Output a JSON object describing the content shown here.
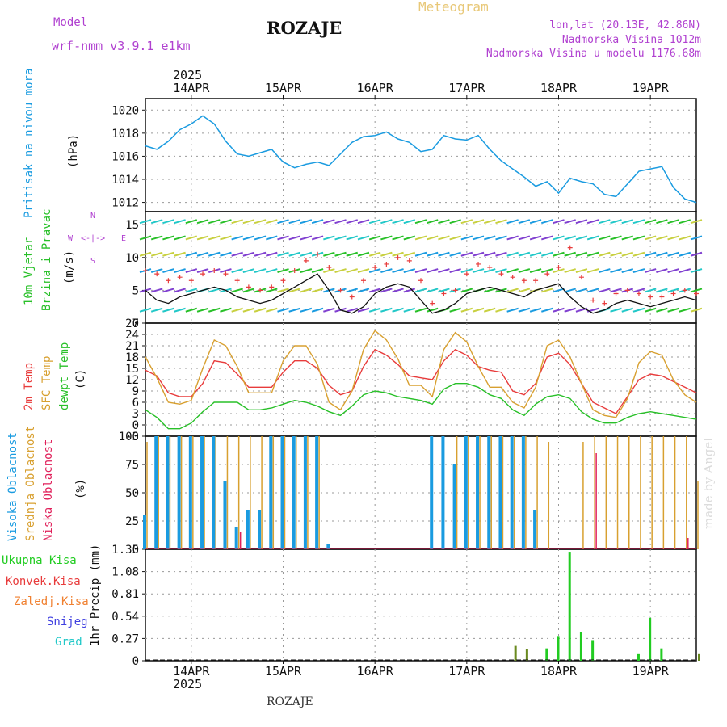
{
  "header": {
    "model_label": "Model",
    "model_name": "wrf-nmm_v3.9.1 e1km",
    "station": "ROZAJE",
    "meteogram_label": "Meteogram",
    "lonlat": "lon,lat (20.13E, 42.86N)",
    "elevation": "Nadmorska Visina 1012m",
    "model_elevation": "Nadmorska Visina u modelu 1176.68m",
    "year_top": "2025",
    "year_bottom": "2025",
    "bottom_station": "ROZAJE",
    "credit": "made by Angel"
  },
  "colors": {
    "pressure": "#1a9be0",
    "temp2m": "#e83c3c",
    "sfc": "#d8a030",
    "dewpt": "#28c028",
    "high_cloud": "#1a9be0",
    "mid_cloud": "#d8a030",
    "low_cloud": "#e0205a",
    "precip_total": "#22cc22",
    "precip_conv": "#e83c3c",
    "precip_frozen": "#f08030",
    "snow": "#4040e0",
    "grad": "#20c8c8",
    "model_label": "#b040d0"
  },
  "dates": [
    "14APR",
    "15APR",
    "16APR",
    "17APR",
    "18APR",
    "19APR"
  ],
  "panel_labels": {
    "pressure": [
      "Pritisak na nivou mora"
    ],
    "pressure_unit": "(hPa)",
    "wind": [
      "10m Vjetar",
      "Brzina i Pravac"
    ],
    "wind_unit": "(m/s)",
    "compass": [
      "N",
      "E",
      "W",
      "S",
      "<-|->",
      "^",
      "v"
    ],
    "temp": [
      "2m Temp",
      "SFC Temp",
      "dewpt Temp"
    ],
    "temp_unit": "(C)",
    "cloud": [
      "Visoka Oblacnost",
      "Srednja Oblacnost",
      "Niska Oblacnost"
    ],
    "cloud_unit": "(%)",
    "precip_legend": [
      "Ukupna Kisa",
      "Konvek.Kisa",
      "Zaledj.Kisa",
      "Snijeg",
      "Grad"
    ],
    "precip_unit": "1hr Precip (mm)"
  },
  "chart_data": [
    {
      "type": "line",
      "name": "pressure",
      "ylabel": "(hPa)",
      "ylim": [
        1011.2,
        1021.0
      ],
      "yticks": [
        "1020",
        "1018",
        "1016",
        "1014",
        "1012"
      ],
      "x_hours": [
        0,
        3,
        6,
        9,
        12,
        15,
        18,
        21,
        24,
        27,
        30,
        33,
        36,
        39,
        42,
        45,
        48,
        51,
        54,
        57,
        60,
        63,
        66,
        69,
        72,
        75,
        78,
        81,
        84,
        87,
        90,
        93,
        96,
        99,
        102,
        105,
        108,
        111,
        114,
        117,
        120,
        123,
        126,
        129,
        132,
        135,
        138,
        141,
        144
      ],
      "values": [
        1016.9,
        1016.6,
        1017.3,
        1018.3,
        1018.8,
        1019.5,
        1018.8,
        1017.3,
        1016.2,
        1016.0,
        1016.3,
        1016.6,
        1015.5,
        1015.0,
        1015.3,
        1015.5,
        1015.2,
        1016.2,
        1017.2,
        1017.7,
        1017.8,
        1018.1,
        1017.5,
        1017.2,
        1016.4,
        1016.6,
        1017.8,
        1017.5,
        1017.4,
        1017.8,
        1016.6,
        1015.6,
        1014.9,
        1014.2,
        1013.4,
        1013.8,
        1012.8,
        1014.1,
        1013.8,
        1013.6,
        1012.7,
        1012.5,
        1013.6,
        1014.7,
        1014.9,
        1015.1,
        1013.3,
        1012.3,
        1012.0
      ]
    },
    {
      "type": "line",
      "name": "wind",
      "ylabel": "(m/s)",
      "ylim": [
        0,
        17
      ],
      "yticks": [
        "15",
        "10",
        "5",
        "0"
      ],
      "x_hours": [
        0,
        3,
        6,
        9,
        12,
        15,
        18,
        21,
        24,
        27,
        30,
        33,
        36,
        39,
        42,
        45,
        48,
        51,
        54,
        57,
        60,
        63,
        66,
        69,
        72,
        75,
        78,
        81,
        84,
        87,
        90,
        93,
        96,
        99,
        102,
        105,
        108,
        111,
        114,
        117,
        120,
        123,
        126,
        129,
        132,
        135,
        138,
        141,
        144
      ],
      "series": [
        {
          "values": [
            5.0,
            3.5,
            3.0,
            4.0,
            4.5,
            5.0,
            5.5,
            5.0,
            4.0,
            3.5,
            3.0,
            3.5,
            4.5,
            5.5,
            6.5,
            7.5,
            5.0,
            2.0,
            1.5,
            2.5,
            4.5,
            5.5,
            6.0,
            5.5,
            3.5,
            1.5,
            2.0,
            3.0,
            4.5,
            5.0,
            5.5,
            5.0,
            4.5,
            4.0,
            5.0,
            5.5,
            6.0,
            4.0,
            2.5,
            1.5,
            2.0,
            3.0,
            3.5,
            3.0,
            2.5,
            3.0,
            3.5,
            4.0,
            3.5
          ]
        },
        {
          "values": [
            8.0,
            7.5,
            6.5,
            7.0,
            6.5,
            7.5,
            8.0,
            7.5,
            6.5,
            5.5,
            5.0,
            5.5,
            6.5,
            8.0,
            9.5,
            10.5,
            8.5,
            5.0,
            4.0,
            6.5,
            8.5,
            9.0,
            10.0,
            9.5,
            6.5,
            3.0,
            4.5,
            5.0,
            7.5,
            9.0,
            8.5,
            7.5,
            7.0,
            6.5,
            6.5,
            7.5,
            8.5,
            11.5,
            7.0,
            3.5,
            3.0,
            4.5,
            5.0,
            4.5,
            4.0,
            4.0,
            4.5,
            5.0,
            4.5
          ]
        }
      ]
    },
    {
      "type": "line",
      "name": "temperature",
      "ylabel": "(C)",
      "ylim": [
        -3,
        27
      ],
      "yticks": [
        "27",
        "24",
        "21",
        "18",
        "15",
        "12",
        "9",
        "6",
        "3",
        "0",
        "-3"
      ],
      "x_hours": [
        0,
        3,
        6,
        9,
        12,
        15,
        18,
        21,
        24,
        27,
        30,
        33,
        36,
        39,
        42,
        45,
        48,
        51,
        54,
        57,
        60,
        63,
        66,
        69,
        72,
        75,
        78,
        81,
        84,
        87,
        90,
        93,
        96,
        99,
        102,
        105,
        108,
        111,
        114,
        117,
        120,
        123,
        126,
        129,
        132,
        135,
        138,
        141,
        144
      ],
      "series": [
        {
          "values": [
            14.5,
            13.0,
            8.5,
            7.5,
            7.5,
            11.0,
            17.0,
            16.5,
            13.5,
            10.0,
            10.0,
            10.0,
            14.0,
            17.0,
            17.0,
            15.0,
            10.5,
            8.0,
            9.0,
            15.5,
            20.0,
            18.5,
            16.0,
            13.0,
            12.5,
            12.0,
            17.0,
            20.0,
            18.5,
            15.5,
            14.5,
            14.0,
            9.0,
            8.0,
            11.0,
            18.0,
            19.0,
            16.0,
            11.0,
            6.0,
            4.5,
            3.0,
            7.5,
            12.0,
            13.5,
            13.0,
            11.5,
            10.0,
            8.5
          ]
        },
        {
          "values": [
            18.0,
            12.5,
            6.0,
            5.5,
            6.5,
            15.0,
            22.5,
            21.0,
            15.5,
            8.5,
            8.5,
            8.5,
            17.0,
            21.0,
            21.0,
            16.0,
            6.0,
            4.0,
            9.0,
            20.0,
            25.0,
            22.5,
            17.5,
            10.5,
            10.5,
            7.5,
            20.0,
            24.5,
            22.0,
            15.5,
            10.0,
            10.0,
            6.0,
            4.5,
            10.0,
            21.0,
            22.5,
            18.0,
            11.0,
            4.0,
            2.5,
            2.0,
            7.0,
            16.5,
            19.5,
            18.5,
            12.0,
            8.0,
            6.0
          ]
        },
        {
          "values": [
            4.0,
            2.0,
            -1.0,
            -1.0,
            0.5,
            3.5,
            6.0,
            6.0,
            6.0,
            4.0,
            4.0,
            4.5,
            5.5,
            6.5,
            6.0,
            5.0,
            3.5,
            2.5,
            5.0,
            8.0,
            9.0,
            8.5,
            7.5,
            7.0,
            6.5,
            5.5,
            9.5,
            11.0,
            11.0,
            10.0,
            8.0,
            7.0,
            4.0,
            2.5,
            5.5,
            7.5,
            8.0,
            7.0,
            3.5,
            1.5,
            0.5,
            0.5,
            2.0,
            3.0,
            3.5,
            3.0,
            2.5,
            2.0,
            1.5
          ]
        }
      ]
    },
    {
      "type": "bar",
      "name": "cloudiness",
      "ylabel": "(%)",
      "ylim": [
        0,
        100
      ],
      "yticks": [
        "100",
        "75",
        "50",
        "25",
        "0"
      ],
      "x_hours": [
        0,
        3,
        6,
        9,
        12,
        15,
        18,
        21,
        24,
        27,
        30,
        33,
        36,
        39,
        42,
        45,
        48,
        51,
        54,
        57,
        60,
        63,
        66,
        69,
        72,
        75,
        78,
        81,
        84,
        87,
        90,
        93,
        96,
        99,
        102,
        105,
        108,
        111,
        114,
        117,
        120,
        123,
        126,
        129,
        132,
        135,
        138,
        141,
        144
      ],
      "series": [
        {
          "values": [
            30,
            100,
            100,
            100,
            100,
            100,
            100,
            60,
            20,
            35,
            35,
            100,
            100,
            100,
            100,
            100,
            5,
            0,
            0,
            0,
            0,
            0,
            0,
            0,
            0,
            100,
            100,
            75,
            100,
            100,
            100,
            100,
            100,
            100,
            35,
            0,
            0,
            0,
            0,
            0,
            0,
            0,
            0,
            0,
            0,
            0,
            0,
            0,
            0
          ]
        },
        {
          "values": [
            95,
            100,
            100,
            100,
            100,
            100,
            100,
            100,
            100,
            100,
            100,
            100,
            100,
            100,
            100,
            100,
            0,
            0,
            0,
            0,
            0,
            0,
            0,
            0,
            0,
            0,
            0,
            100,
            100,
            100,
            100,
            100,
            100,
            100,
            100,
            95,
            0,
            0,
            95,
            100,
            100,
            100,
            100,
            100,
            100,
            100,
            100,
            100,
            60
          ]
        },
        {
          "values": [
            0,
            0,
            0,
            0,
            0,
            0,
            0,
            0,
            15,
            0,
            0,
            0,
            0,
            0,
            0,
            0,
            0,
            0,
            0,
            0,
            0,
            0,
            0,
            0,
            0,
            0,
            0,
            0,
            0,
            0,
            0,
            0,
            0,
            0,
            0,
            0,
            0,
            0,
            0,
            85,
            0,
            0,
            0,
            0,
            0,
            0,
            0,
            10,
            0
          ]
        }
      ]
    },
    {
      "type": "bar",
      "name": "precipitation",
      "ylabel": "1hr Precip (mm)",
      "ylim": [
        0,
        1.35
      ],
      "yticks": [
        "1.35",
        "1.08",
        "0.81",
        "0.54",
        "0.27",
        "0"
      ],
      "x_hours": [
        0,
        3,
        6,
        9,
        12,
        15,
        18,
        21,
        24,
        27,
        30,
        33,
        36,
        39,
        42,
        45,
        48,
        51,
        54,
        57,
        60,
        63,
        66,
        69,
        72,
        75,
        78,
        81,
        84,
        87,
        90,
        93,
        96,
        99,
        102,
        105,
        108,
        111,
        114,
        117,
        120,
        123,
        126,
        129,
        132,
        135,
        138,
        141,
        144
      ],
      "series": [
        {
          "values": [
            0,
            0,
            0,
            0,
            0,
            0,
            0,
            0,
            0,
            0,
            0,
            0,
            0,
            0,
            0,
            0,
            0,
            0,
            0,
            0,
            0,
            0,
            0,
            0,
            0,
            0,
            0,
            0,
            0,
            0,
            0,
            0,
            0,
            0,
            0,
            0.15,
            0.3,
            1.32,
            0.35,
            0.25,
            0,
            0,
            0,
            0.08,
            0.52,
            0.15,
            0,
            0,
            0
          ]
        },
        {
          "values": [
            0,
            0,
            0,
            0,
            0,
            0,
            0,
            0,
            0,
            0,
            0,
            0,
            0,
            0,
            0,
            0,
            0,
            0,
            0,
            0,
            0,
            0,
            0,
            0,
            0,
            0,
            0,
            0,
            0,
            0,
            0,
            0,
            0.18,
            0.14,
            0,
            0,
            0,
            0,
            0,
            0,
            0,
            0,
            0,
            0,
            0,
            0,
            0,
            0,
            0.08
          ]
        }
      ]
    }
  ]
}
